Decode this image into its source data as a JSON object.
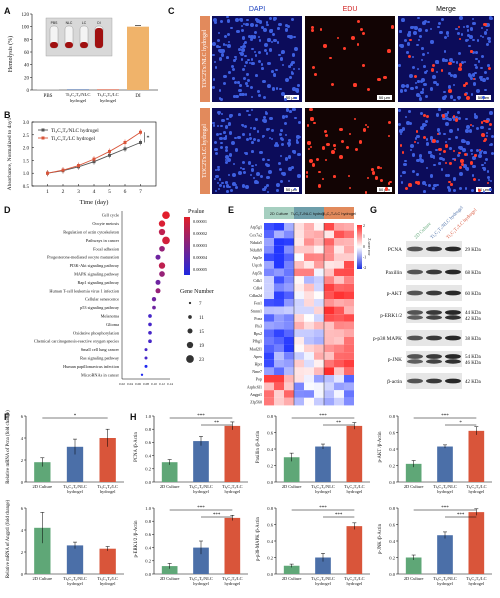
{
  "panels": {
    "A": "A",
    "B": "B",
    "C": "C",
    "D": "D",
    "E": "E",
    "F": "F",
    "G": "G",
    "H": "H"
  },
  "colors": {
    "blue": "#4b6fa8",
    "red": "#d9553a",
    "green": "#5fa777",
    "orange": "#f0b36a",
    "grey": "#b0b0b0"
  },
  "a": {
    "ylabel": "Hemolysis (%)",
    "categories": [
      "PBS",
      "Ti3C2Tx/NLC hydrogel",
      "Ti3C2Tx/LC hydrogel",
      "DI"
    ],
    "tube_labels": [
      "PBS",
      "NLC",
      "LC",
      "DI"
    ],
    "chart_data": {
      "type": "bar",
      "categories": [
        "PBS",
        "Ti3C2Tx/NLC hydrogel",
        "Ti3C2Tx/LC hydrogel",
        "DI"
      ],
      "values": [
        0.5,
        0.9,
        0.9,
        100
      ],
      "ylim": [
        0,
        120
      ],
      "yticks": [
        0,
        20,
        40,
        60,
        80,
        100,
        120
      ]
    }
  },
  "b": {
    "ylabel": "Absorbance, Normalized to day1",
    "xlabel": "Time (day)",
    "legend": [
      "Ti3C2Tx/NLC hydrogel",
      "Ti3C2Tx/LC hydrogel"
    ],
    "chart_data": {
      "type": "line",
      "x": [
        1,
        2,
        3,
        4,
        5,
        6,
        7
      ],
      "series": [
        {
          "name": "Ti3C2Tx/NLC hydrogel",
          "values": [
            1.0,
            1.1,
            1.25,
            1.45,
            1.7,
            1.95,
            2.2
          ]
        },
        {
          "name": "Ti3C2Tx/LC hydrogel",
          "values": [
            1.0,
            1.12,
            1.3,
            1.55,
            1.85,
            2.2,
            2.6
          ]
        }
      ],
      "ylim": [
        0.5,
        3.0
      ],
      "yticks": [
        0.5,
        1.0,
        1.5,
        2.0,
        2.5,
        3.0
      ],
      "xticks": [
        1,
        2,
        3,
        4,
        5,
        6,
        7
      ]
    },
    "sig": "*"
  },
  "c": {
    "cols": [
      "DAPI",
      "EDU",
      "Merge"
    ],
    "rows": [
      "Ti3C2Tx/NLC hydrogel",
      "Ti3C2Tx/LC hydrogel"
    ],
    "scale": "50 μm"
  },
  "d": {
    "xtick": [
      "0.02",
      "0.04",
      "0.06",
      "0.08",
      "0.10",
      "0.12",
      "0.14"
    ],
    "pvalue_title": "Pvalue",
    "pvalue_ticks": [
      "0.00001",
      "0.00002",
      "0.00003",
      "0.00004",
      "0.00005"
    ],
    "gene_title": "Gene Number",
    "gene_sizes": [
      "7",
      "11",
      "15",
      "19",
      "23"
    ],
    "chart_data": {
      "type": "scatter",
      "categories": [
        "Cell cycle",
        "Oocyte meiosis",
        "Regulation of actin cytoskeleton",
        "Pathways in cancer",
        "Focal adhesion",
        "Progesterone-mediated oocyte maturation",
        "PI3K-Akt signaling pathway",
        "MAPK signaling pathway",
        "Rap1 signaling pathway",
        "Human T-cell leukemia virus 1 infection",
        "Cellular senescence",
        "p53 signaling pathway",
        "Melanoma",
        "Glioma",
        "Oxidative phosphorylation",
        "Chemical carcinogenesis-reactive oxygen species",
        "Small cell lung cancer",
        "Ras signaling pathway",
        "Human papillomavirus infection",
        "MicroRNAs in cancer"
      ],
      "x": [
        0.13,
        0.12,
        0.12,
        0.13,
        0.12,
        0.11,
        0.12,
        0.12,
        0.11,
        0.11,
        0.1,
        0.1,
        0.09,
        0.09,
        0.09,
        0.09,
        0.08,
        0.08,
        0.08,
        0.07
      ],
      "size": [
        23,
        19,
        19,
        23,
        17,
        15,
        19,
        17,
        15,
        15,
        13,
        11,
        11,
        11,
        11,
        11,
        9,
        9,
        9,
        7
      ],
      "pvalue": [
        1e-06,
        3e-06,
        1e-05,
        5e-06,
        2e-05,
        3e-05,
        1e-05,
        2e-05,
        3e-05,
        2e-05,
        3e-05,
        3e-05,
        4e-05,
        4e-05,
        4e-05,
        4e-05,
        4e-05,
        4e-05,
        5e-05,
        5e-05
      ],
      "xlim": [
        0.02,
        0.14
      ]
    }
  },
  "e": {
    "groups": [
      "2D Culture",
      "Ti3C2Tx/NLC hydrogel",
      "Ti3C2Tx/LC hydrogel"
    ],
    "genes": [
      "Atp5g1",
      "Cox7a2",
      "Ndufa5",
      "Ndufb9",
      "Atp5e",
      "Uqcrb",
      "Atp5h",
      "Cdk1",
      "Cdk4",
      "Cdkn2d",
      "Fen1",
      "Smnn1",
      "Pcna",
      "Pls3",
      "Rps2",
      "Pfbg1",
      "Mad2l1",
      "Apex",
      "Hprt",
      "Nme7",
      "Pop",
      "Arpbc6l1",
      "Angpt1",
      "Zfp560"
    ],
    "scale_title": "Z score row",
    "scale_ticks": [
      "2",
      "1",
      "0",
      "-1",
      "-2"
    ]
  },
  "g": {
    "cols": [
      "2D Culture",
      "Ti3C2Tx/NLC hydrogel",
      "Ti3C2Tx/LC hydrogel"
    ],
    "rows": [
      {
        "name": "PCNA",
        "kda": "29 KDa"
      },
      {
        "name": "Paxillin",
        "kda": "68 KDa"
      },
      {
        "name": "p-AKT",
        "kda": "60 KDa"
      },
      {
        "name": "p-ERK1/2",
        "kda": "44 KDa / 42 KDa"
      },
      {
        "name": "p-p38 MAPK",
        "kda": "38 KDa"
      },
      {
        "name": "p-JNK",
        "kda": "54 KDa / 46 KDa"
      },
      {
        "name": "β-actin",
        "kda": "42 KDa"
      }
    ]
  },
  "f": [
    {
      "ylabel": "Relative mRNA of Pcna (fold change)",
      "categories": [
        "2D Culture",
        "Ti3C2Tx/NLC hydrogel",
        "Ti3C2Tx/LC hydrogel"
      ],
      "values": [
        1.8,
        3.2,
        4.0
      ],
      "err": [
        0.4,
        0.7,
        0.8
      ],
      "yticks": [
        "0",
        "2",
        "4",
        "6"
      ],
      "ymax": 6,
      "sig": [
        "*"
      ]
    },
    {
      "ylabel": "Relative mRNA of Angpt1 (fold change)",
      "categories": [
        "2D Culture",
        "Ti3C2Tx/NLC hydrogel",
        "Ti3C2Tx/LC hydrogel"
      ],
      "values": [
        4.2,
        2.6,
        2.3
      ],
      "err": [
        1.4,
        0.3,
        0.2
      ],
      "yticks": [
        "0",
        "2",
        "4",
        "6"
      ],
      "ymax": 6,
      "sig": []
    }
  ],
  "h": [
    {
      "ylabel": "PCNA /β-Actin",
      "values": [
        0.3,
        0.62,
        0.85
      ],
      "err": [
        0.04,
        0.07,
        0.06
      ],
      "yticks": [
        "0.0",
        "0.2",
        "0.4",
        "0.6",
        "0.8",
        "1.0"
      ],
      "ymax": 1.0,
      "sig": [
        "***",
        "**"
      ]
    },
    {
      "ylabel": "Paxillin /β-Actin",
      "values": [
        0.3,
        0.43,
        0.68
      ],
      "err": [
        0.05,
        0.03,
        0.04
      ],
      "yticks": [
        "0.0",
        "0.2",
        "0.4",
        "0.6",
        "0.8"
      ],
      "ymax": 0.8,
      "sig": [
        "***",
        "**"
      ]
    },
    {
      "ylabel": "p-AKT /β-Actin",
      "values": [
        0.22,
        0.43,
        0.62
      ],
      "err": [
        0.04,
        0.02,
        0.05
      ],
      "yticks": [
        "0.0",
        "0.2",
        "0.4",
        "0.6",
        "0.8"
      ],
      "ymax": 0.8,
      "sig": [
        "***",
        "*"
      ]
    },
    {
      "ylabel": "p-ERK1/2 /β-Actin",
      "values": [
        0.12,
        0.4,
        0.85
      ],
      "err": [
        0.04,
        0.1,
        0.04
      ],
      "yticks": [
        "0.0",
        "0.2",
        "0.4",
        "0.6",
        "0.8",
        "1.0"
      ],
      "ymax": 1.0,
      "sig": [
        "***",
        "***"
      ]
    },
    {
      "ylabel": "p-p38-MAPK /β-Actin",
      "values": [
        0.1,
        0.2,
        0.58
      ],
      "err": [
        0.02,
        0.05,
        0.04
      ],
      "yticks": [
        "0.0",
        "0.2",
        "0.4",
        "0.6",
        "0.8"
      ],
      "ymax": 0.8,
      "sig": [
        "***",
        "***"
      ]
    },
    {
      "ylabel": "p-JNK /β-Actin",
      "values": [
        0.2,
        0.47,
        0.75
      ],
      "err": [
        0.03,
        0.04,
        0.04
      ],
      "yticks": [
        "0.0",
        "0.2",
        "0.4",
        "0.6",
        "0.8"
      ],
      "ymax": 0.8,
      "sig": [
        "***",
        "***"
      ]
    }
  ],
  "h_categories": [
    "2D Culture",
    "Ti3C2Tx/NLC hydrogel",
    "Ti3C2Tx/LC hydrogel"
  ]
}
